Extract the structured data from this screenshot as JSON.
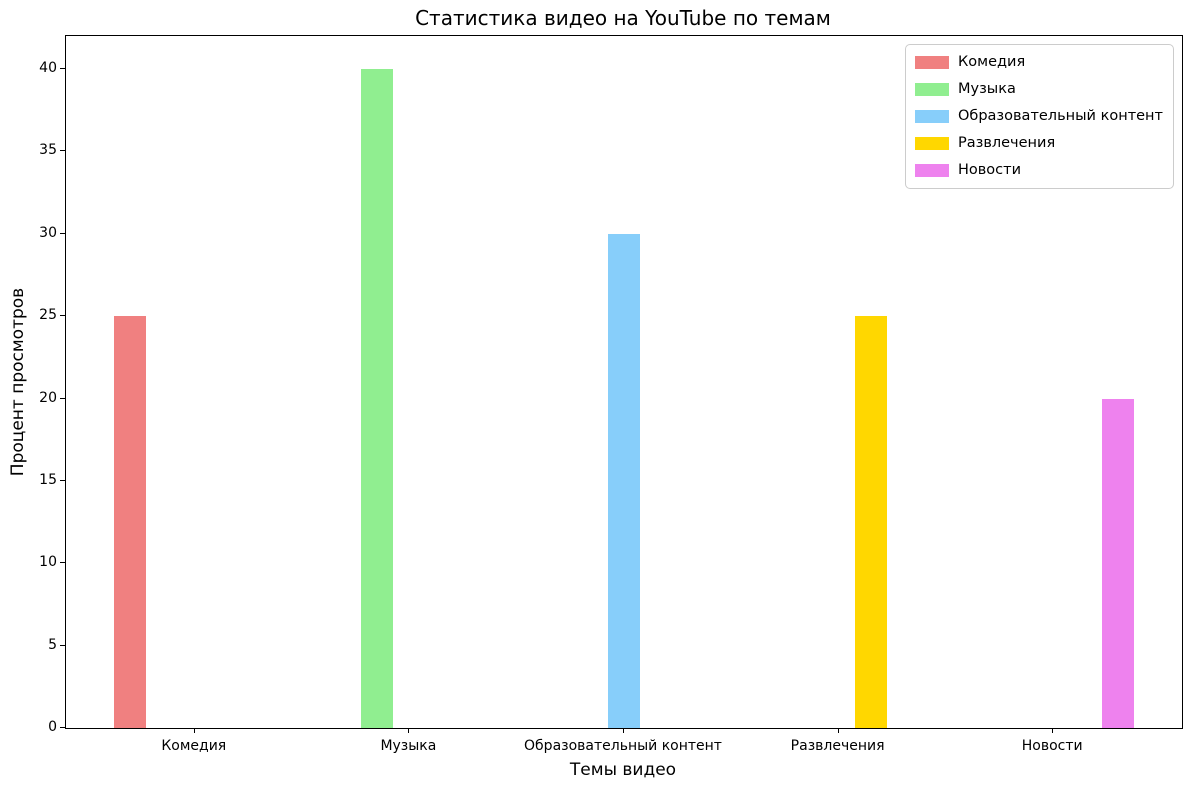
{
  "chart_data": {
    "type": "bar",
    "title": "Статистика видео на YouTube по темам",
    "xlabel": "Темы видео",
    "ylabel": "Процент просмотров",
    "categories": [
      "Комедия",
      "Музыка",
      "Образовательный контент",
      "Развлечения",
      "Новости"
    ],
    "series": [
      {
        "name": "Комедия",
        "color": "#F08080",
        "values": [
          25,
          0,
          0,
          0,
          0
        ]
      },
      {
        "name": "Музыка",
        "color": "#90EE90",
        "values": [
          0,
          40,
          0,
          0,
          0
        ]
      },
      {
        "name": "Образовательный контент",
        "color": "#87CEFA",
        "values": [
          0,
          0,
          30,
          0,
          0
        ]
      },
      {
        "name": "Развлечения",
        "color": "#FFD700",
        "values": [
          0,
          0,
          0,
          25,
          0
        ]
      },
      {
        "name": "Новости",
        "color": "#EE82EE",
        "values": [
          0,
          0,
          0,
          0,
          20
        ]
      }
    ],
    "y_ticks": [
      0,
      5,
      10,
      15,
      20,
      25,
      30,
      35,
      40
    ],
    "ylim": [
      0,
      42
    ],
    "xlim": [
      -0.6,
      4.6
    ],
    "bar_width": 0.15,
    "grid": false,
    "legend": {
      "position": "upper right",
      "entries": [
        "Комедия",
        "Музыка",
        "Образовательный контент",
        "Развлечения",
        "Новости"
      ]
    }
  }
}
